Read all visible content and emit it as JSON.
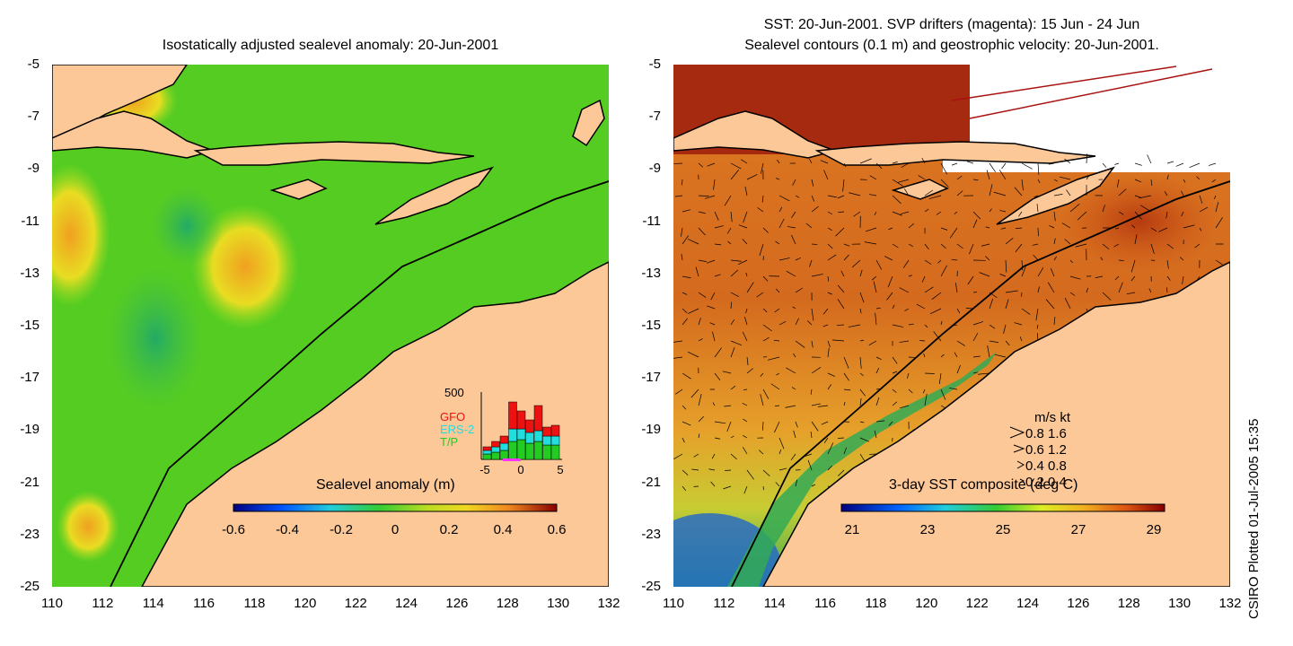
{
  "left": {
    "title": "Isostatically adjusted sealevel anomaly: 20-Jun-2001",
    "colorbar": {
      "title": "Sealevel anomaly (m)",
      "ticks": [
        "-0.6",
        "-0.4",
        "-0.2",
        "0",
        "0.2",
        "0.4",
        "0.6"
      ]
    },
    "inset": {
      "ymax": "500",
      "x_ticks": [
        "-5",
        "0",
        "5"
      ],
      "legend": [
        {
          "label": "GFO",
          "color": "#ee1111"
        },
        {
          "label": "ERS-2",
          "color": "#22dddd"
        },
        {
          "label": "T/P",
          "color": "#22cc22"
        }
      ]
    }
  },
  "right": {
    "title_line1": "SST: 20-Jun-2001. SVP drifters (magenta): 15 Jun - 24 Jun",
    "title_line2": "Sealevel contours (0.1 m) and geostrophic velocity: 20-Jun-2001.",
    "colorbar": {
      "title": "3-day SST composite (deg C)",
      "ticks": [
        "21",
        "23",
        "25",
        "27",
        "29"
      ]
    },
    "velocity_key": {
      "header": "m/s  kt",
      "rows": [
        "0.8  1.6",
        "0.6  1.2",
        "0.4  0.8",
        "0.2  0.4"
      ]
    }
  },
  "axes": {
    "y_ticks": [
      "-5",
      "-7",
      "-9",
      "-11",
      "-13",
      "-15",
      "-17",
      "-19",
      "-21",
      "-23",
      "-25"
    ],
    "x_ticks": [
      "110",
      "112",
      "114",
      "116",
      "118",
      "120",
      "122",
      "124",
      "126",
      "128",
      "130",
      "132"
    ]
  },
  "credit": "CSIRO Plotted 01-Jul-2005 15:35",
  "colors": {
    "land": "#fcc898",
    "ocean_sla": "#55cc22",
    "ocean_sst": "#cc6622"
  }
}
